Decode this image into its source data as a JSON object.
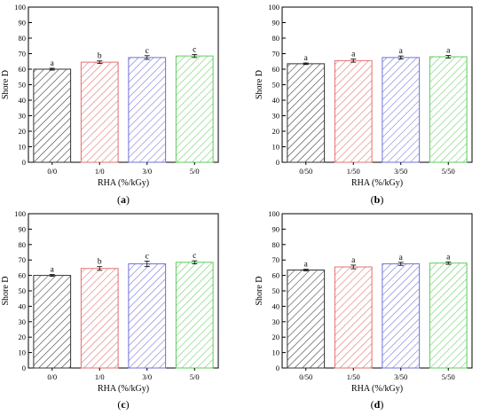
{
  "colors": {
    "black": "#333333",
    "red": "#e07070",
    "blue": "#7070d8",
    "green": "#5ccc5c"
  },
  "chart_data": [
    {
      "panel_label": "(a)",
      "type": "bar",
      "xlabel": "RHA (%/kGy)",
      "ylabel": "Shore D",
      "ylim": [
        0,
        100
      ],
      "yticks": [
        0,
        10,
        20,
        30,
        40,
        50,
        60,
        70,
        80,
        90,
        100
      ],
      "categories": [
        "0/0",
        "1/0",
        "3/0",
        "5/0"
      ],
      "values": [
        60,
        64.5,
        67.5,
        68.5
      ],
      "errors": [
        0.6,
        0.8,
        1.2,
        1.0
      ],
      "letters": [
        "a",
        "b",
        "c",
        "c"
      ],
      "bar_colors": [
        "#333333",
        "#e07070",
        "#7070d8",
        "#5ccc5c"
      ]
    },
    {
      "panel_label": "(b)",
      "type": "bar",
      "xlabel": "RHA (%/kGy)",
      "ylabel": "Shore D",
      "ylim": [
        0,
        100
      ],
      "yticks": [
        0,
        10,
        20,
        30,
        40,
        50,
        60,
        70,
        80,
        90,
        100
      ],
      "categories": [
        "0/50",
        "1/50",
        "3/50",
        "5/50"
      ],
      "values": [
        63.5,
        65.5,
        67.5,
        68
      ],
      "errors": [
        0.5,
        1.0,
        1.0,
        0.8
      ],
      "letters": [
        "a",
        "a",
        "a",
        "a"
      ],
      "bar_colors": [
        "#333333",
        "#e07070",
        "#7070d8",
        "#5ccc5c"
      ]
    },
    {
      "panel_label": "(c)",
      "type": "bar",
      "xlabel": "RHA (%/kGy)",
      "ylabel": "Shore D",
      "ylim": [
        0,
        100
      ],
      "yticks": [
        0,
        10,
        20,
        30,
        40,
        50,
        60,
        70,
        80,
        90,
        100
      ],
      "categories": [
        "0/0",
        "1/0",
        "3/0",
        "5/0"
      ],
      "values": [
        60,
        64.5,
        67.5,
        68.5
      ],
      "errors": [
        0.6,
        1.2,
        1.8,
        1.0
      ],
      "letters": [
        "a",
        "b",
        "c",
        "c"
      ],
      "bar_colors": [
        "#333333",
        "#e07070",
        "#7070d8",
        "#5ccc5c"
      ]
    },
    {
      "panel_label": "(d)",
      "type": "bar",
      "xlabel": "RHA (%/kGy)",
      "ylabel": "Shore D",
      "ylim": [
        0,
        100
      ],
      "yticks": [
        0,
        10,
        20,
        30,
        40,
        50,
        60,
        70,
        80,
        90,
        100
      ],
      "categories": [
        "0/50",
        "1/50",
        "3/50",
        "5/50"
      ],
      "values": [
        63.5,
        65.5,
        67.5,
        68
      ],
      "errors": [
        0.5,
        1.2,
        1.0,
        0.8
      ],
      "letters": [
        "a",
        "a",
        "a",
        "a"
      ],
      "bar_colors": [
        "#333333",
        "#e07070",
        "#7070d8",
        "#5ccc5c"
      ]
    }
  ]
}
